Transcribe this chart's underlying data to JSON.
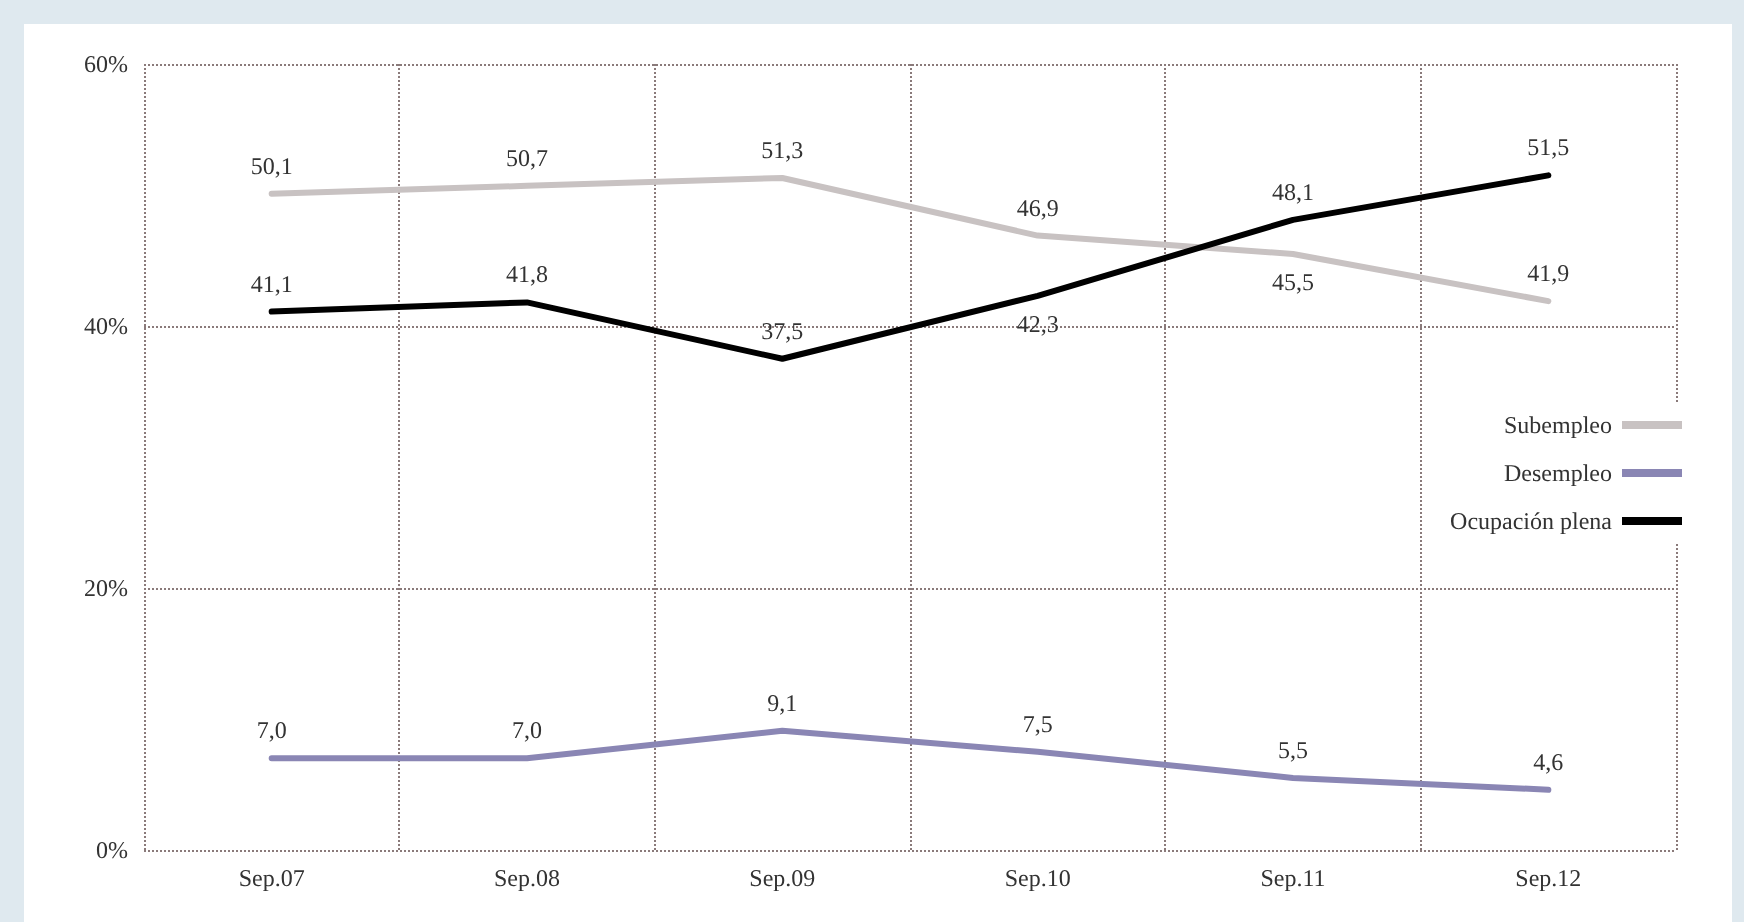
{
  "chart_data": {
    "type": "line",
    "categories": [
      "Sep.07",
      "Sep.08",
      "Sep.09",
      "Sep.10",
      "Sep.11",
      "Sep.12"
    ],
    "series": [
      {
        "name": "Subempleo",
        "color": "#c8c2c2",
        "values": [
          50.1,
          50.7,
          51.3,
          46.9,
          45.5,
          41.9
        ],
        "value_labels": [
          "50,1",
          "50,7",
          "51,3",
          "46,9",
          "45,5",
          "41,9"
        ]
      },
      {
        "name": "Desempleo",
        "color": "#8a86b4",
        "values": [
          7.0,
          7.0,
          9.1,
          7.5,
          5.5,
          4.6
        ],
        "value_labels": [
          "7,0",
          "7,0",
          "9,1",
          "7,5",
          "5,5",
          "4,6"
        ]
      },
      {
        "name": "Ocupación plena",
        "color": "#000000",
        "values": [
          41.1,
          41.8,
          37.5,
          42.3,
          48.1,
          51.5
        ],
        "value_labels": [
          "41,1",
          "41,8",
          "37,5",
          "42,3",
          "48,1",
          "51,5"
        ]
      }
    ],
    "ylim": [
      0,
      60
    ],
    "yticks": [
      {
        "value": 0,
        "label": "0%"
      },
      {
        "value": 20,
        "label": "20%"
      },
      {
        "value": 40,
        "label": "40%"
      },
      {
        "value": 60,
        "label": "60%"
      }
    ],
    "grid": true,
    "legend": "right",
    "marker": "none",
    "line_style": "solid"
  }
}
